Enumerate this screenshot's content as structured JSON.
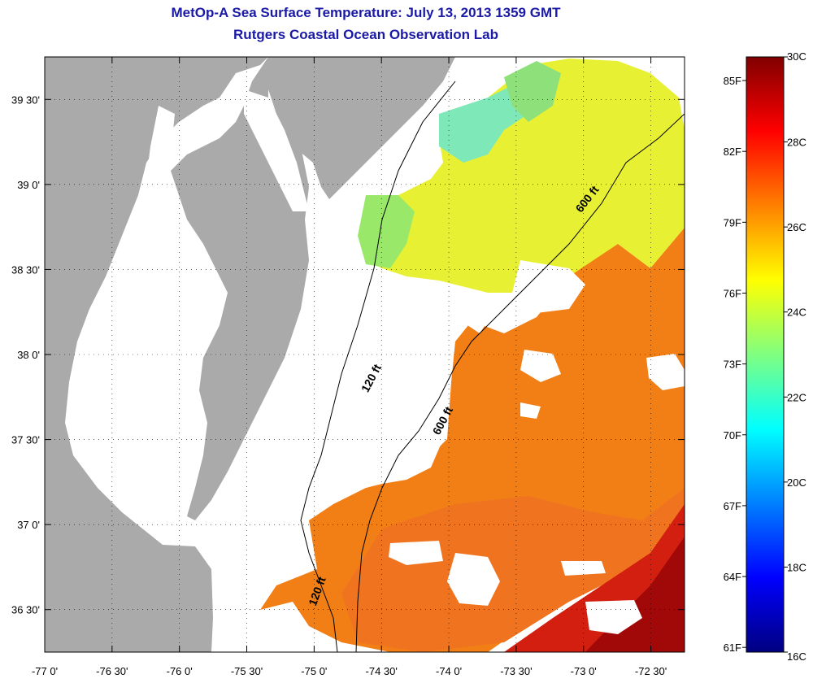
{
  "title": "MetOp-A Sea Surface Temperature:  July 13, 2013 1359 GMT",
  "subtitle": "Rutgers Coastal Ocean Observation Lab",
  "colors": {
    "land": "#aaaaaa",
    "ocean_background": "#ffffff",
    "title": "#1a1aa6",
    "contour": "#000000"
  },
  "map": {
    "lon_range": [
      -77.0,
      -72.25
    ],
    "lat_range": [
      36.25,
      39.75
    ],
    "lon_ticks": [
      {
        "value": -77.0,
        "label": "-77 0'"
      },
      {
        "value": -76.5,
        "label": "-76 30'"
      },
      {
        "value": -76.0,
        "label": "-76 0'"
      },
      {
        "value": -75.5,
        "label": "-75 30'"
      },
      {
        "value": -75.0,
        "label": "-75 0'"
      },
      {
        "value": -74.5,
        "label": "-74 30'"
      },
      {
        "value": -74.0,
        "label": "-74 0'"
      },
      {
        "value": -73.5,
        "label": "-73 30'"
      },
      {
        "value": -73.0,
        "label": "-73 0'"
      },
      {
        "value": -72.5,
        "label": "-72 30'"
      }
    ],
    "lat_ticks": [
      {
        "value": 39.5,
        "label": "39 30'"
      },
      {
        "value": 39.0,
        "label": "39 0'"
      },
      {
        "value": 38.5,
        "label": "38 30'"
      },
      {
        "value": 38.0,
        "label": "38 0'"
      },
      {
        "value": 37.5,
        "label": "37 30'"
      },
      {
        "value": 37.0,
        "label": "37 0'"
      },
      {
        "value": 36.5,
        "label": "36 30'"
      }
    ],
    "grid": true,
    "contour_labels": [
      {
        "text": "120 ft",
        "lon": -74.55,
        "lat": 37.85,
        "angle": -62
      },
      {
        "text": "600 ft",
        "lon": -74.02,
        "lat": 37.6,
        "angle": -62
      },
      {
        "text": "600 ft",
        "lon": -72.95,
        "lat": 38.9,
        "angle": -52
      },
      {
        "text": "120 ft",
        "lon": -74.95,
        "lat": 36.6,
        "angle": -70
      }
    ]
  },
  "colorbar": {
    "min_c": 16,
    "max_c": 30,
    "celsius_labels": [
      "30C",
      "28C",
      "26C",
      "24C",
      "22C",
      "20C",
      "18C",
      "16C"
    ],
    "celsius_values": [
      30,
      28,
      26,
      24,
      22,
      20,
      18,
      16
    ],
    "fahrenheit_labels": [
      "85F",
      "82F",
      "79F",
      "76F",
      "73F",
      "70F",
      "67F",
      "64F",
      "61F"
    ],
    "fahrenheit_values": [
      85,
      82,
      79,
      76,
      73,
      70,
      67,
      64,
      61
    ],
    "gradient": [
      "#800000",
      "#ff0000",
      "#ff8000",
      "#ffff00",
      "#80ff80",
      "#00ffff",
      "#0080ff",
      "#0000ff",
      "#000080"
    ]
  }
}
